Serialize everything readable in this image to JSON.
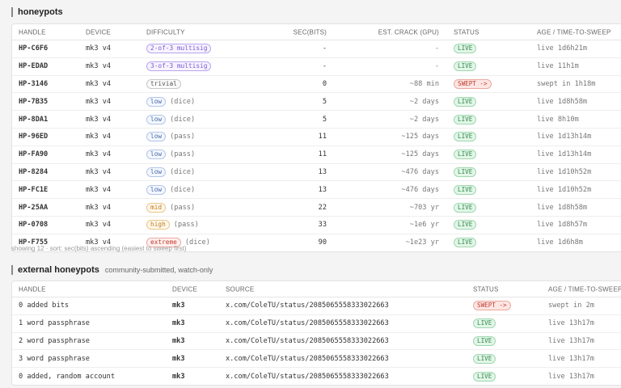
{
  "honeypots": {
    "title": "honeypots",
    "headers": {
      "handle": "HANDLE",
      "device": "DEVICE",
      "difficulty": "DIFFICULTY",
      "sec": "SEC(BITS)",
      "crack": "EST. CRACK (GPU)",
      "status": "STATUS",
      "age": "AGE / TIME-TO-SWEEP"
    },
    "rows": [
      {
        "handle": "HP-C6F6",
        "device": "mk3 v4",
        "badge": "2-of-3 multisig",
        "badge_color": "purple",
        "diff_note": "",
        "sec": "-",
        "crack": "-",
        "status": "LIVE",
        "age": "live 1d6h21m"
      },
      {
        "handle": "HP-EDAD",
        "device": "mk3 v4",
        "badge": "3-of-3 multisig",
        "badge_color": "purple",
        "diff_note": "",
        "sec": "-",
        "crack": "-",
        "status": "LIVE",
        "age": "live 11h1m"
      },
      {
        "handle": "HP-3146",
        "device": "mk3 v4",
        "badge": "trivial",
        "badge_color": "gray",
        "diff_note": "",
        "sec": "0",
        "crack": "~88 min",
        "status": "SWEPT ->",
        "age": "swept in 1h18m"
      },
      {
        "handle": "HP-7B35",
        "device": "mk3 v4",
        "badge": "low",
        "badge_color": "blue",
        "diff_note": "(dice)",
        "sec": "5",
        "crack": "~2 days",
        "status": "LIVE",
        "age": "live 1d8h58m"
      },
      {
        "handle": "HP-8DA1",
        "device": "mk3 v4",
        "badge": "low",
        "badge_color": "blue",
        "diff_note": "(dice)",
        "sec": "5",
        "crack": "~2 days",
        "status": "LIVE",
        "age": "live 8h10m"
      },
      {
        "handle": "HP-96ED",
        "device": "mk3 v4",
        "badge": "low",
        "badge_color": "blue",
        "diff_note": "(pass)",
        "sec": "11",
        "crack": "~125 days",
        "status": "LIVE",
        "age": "live 1d13h14m"
      },
      {
        "handle": "HP-FA90",
        "device": "mk3 v4",
        "badge": "low",
        "badge_color": "blue",
        "diff_note": "(pass)",
        "sec": "11",
        "crack": "~125 days",
        "status": "LIVE",
        "age": "live 1d13h14m"
      },
      {
        "handle": "HP-8284",
        "device": "mk3 v4",
        "badge": "low",
        "badge_color": "blue",
        "diff_note": "(dice)",
        "sec": "13",
        "crack": "~476 days",
        "status": "LIVE",
        "age": "live 1d10h52m"
      },
      {
        "handle": "HP-FC1E",
        "device": "mk3 v4",
        "badge": "low",
        "badge_color": "blue",
        "diff_note": "(dice)",
        "sec": "13",
        "crack": "~476 days",
        "status": "LIVE",
        "age": "live 1d10h52m"
      },
      {
        "handle": "HP-25AA",
        "device": "mk3 v4",
        "badge": "mid",
        "badge_color": "orange",
        "diff_note": "(pass)",
        "sec": "22",
        "crack": "~703 yr",
        "status": "LIVE",
        "age": "live 1d8h58m"
      },
      {
        "handle": "HP-0708",
        "device": "mk3 v4",
        "badge": "high",
        "badge_color": "orange",
        "diff_note": "(pass)",
        "sec": "33",
        "crack": "~1e6 yr",
        "status": "LIVE",
        "age": "live 1d8h57m"
      },
      {
        "handle": "HP-F755",
        "device": "mk3 v4",
        "badge": "extreme",
        "badge_color": "red",
        "diff_note": "(dice)",
        "sec": "90",
        "crack": "~1e23 yr",
        "status": "LIVE",
        "age": "live 1d6h8m"
      }
    ],
    "footnote": "showing 12 · sort: sec(bits) ascending (easiest to sweep first)"
  },
  "external": {
    "title": "external honeypots",
    "subtitle": "community-submitted, watch-only",
    "headers": {
      "handle": "HANDLE",
      "device": "DEVICE",
      "source": "SOURCE",
      "status": "STATUS",
      "age": "AGE / TIME-TO-SWEEP"
    },
    "rows": [
      {
        "handle": "0 added bits",
        "device": "mk3",
        "source": "x.com/ColeTU/status/2085065558333022663",
        "status": "SWEPT ->",
        "age": "swept in 2m"
      },
      {
        "handle": "1 word passphrase",
        "device": "mk3",
        "source": "x.com/ColeTU/status/2085065558333022663",
        "status": "LIVE",
        "age": "live 13h17m"
      },
      {
        "handle": "2 word passphrase",
        "device": "mk3",
        "source": "x.com/ColeTU/status/2085065558333022663",
        "status": "LIVE",
        "age": "live 13h17m"
      },
      {
        "handle": "3 word passphrase",
        "device": "mk3",
        "source": "x.com/ColeTU/status/2085065558333022663",
        "status": "LIVE",
        "age": "live 13h17m"
      },
      {
        "handle": "0 added, random account",
        "device": "mk3",
        "source": "x.com/ColeTU/status/2085065558333022663",
        "status": "LIVE",
        "age": "live 13h17m"
      }
    ]
  }
}
